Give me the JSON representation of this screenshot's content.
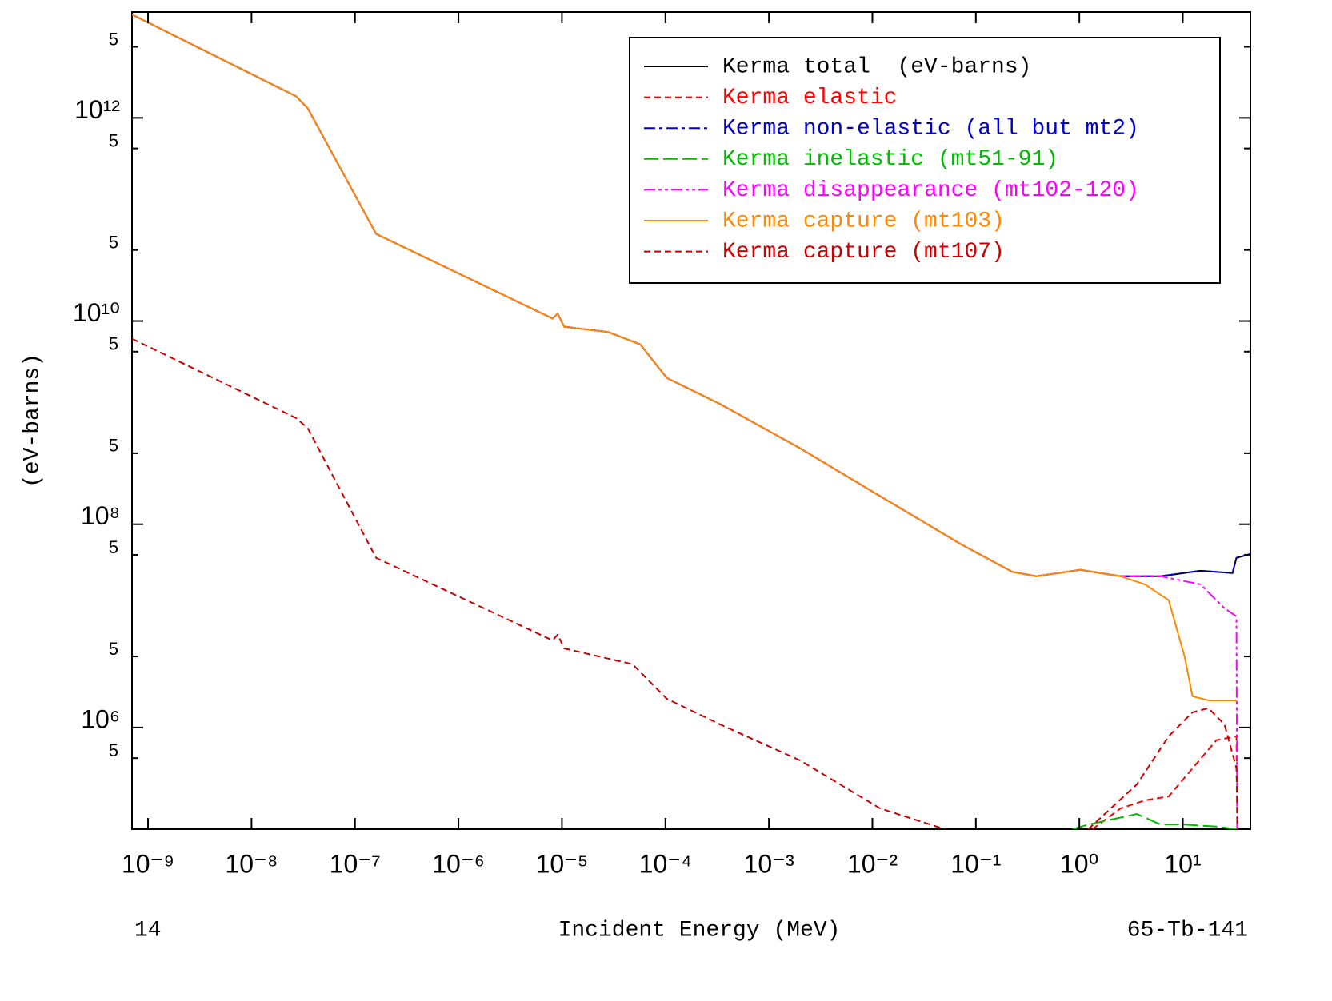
{
  "chart_data": {
    "type": "line",
    "ylabel": "(eV-barns)",
    "xlabel": "Incident Energy (MeV)",
    "left_note": "14",
    "right_note": "65-Tb-141",
    "xscale": "log",
    "yscale": "log",
    "xlim": [
      7e-10,
      45
    ],
    "ylim": [
      100000.0,
      11000000000000.0
    ],
    "xticks": [
      {
        "value": 1e-09,
        "label": "10⁻⁹"
      },
      {
        "value": 1e-08,
        "label": "10⁻⁸"
      },
      {
        "value": 1e-07,
        "label": "10⁻⁷"
      },
      {
        "value": 1e-06,
        "label": "10⁻⁶"
      },
      {
        "value": 1e-05,
        "label": "10⁻⁵"
      },
      {
        "value": 0.0001,
        "label": "10⁻⁴"
      },
      {
        "value": 0.001,
        "label": "10⁻³"
      },
      {
        "value": 0.01,
        "label": "10⁻²"
      },
      {
        "value": 0.1,
        "label": "10⁻¹"
      },
      {
        "value": 1,
        "label": "10⁰"
      },
      {
        "value": 10,
        "label": "10¹"
      }
    ],
    "yticks": [
      {
        "value": 5000000000000.0,
        "label": "5"
      },
      {
        "value": 1000000000000.0,
        "label": "10¹²"
      },
      {
        "value": 500000000000.0,
        "label": "5"
      },
      {
        "value": 50000000000.0,
        "label": "5"
      },
      {
        "value": 10000000000.0,
        "label": "10¹⁰"
      },
      {
        "value": 5000000000.0,
        "label": "5"
      },
      {
        "value": 500000000.0,
        "label": "5"
      },
      {
        "value": 100000000.0,
        "label": "10⁸"
      },
      {
        "value": 50000000.0,
        "label": "5"
      },
      {
        "value": 5000000.0,
        "label": "5"
      },
      {
        "value": 1000000.0,
        "label": "10⁶"
      },
      {
        "value": 500000.0,
        "label": "5"
      }
    ],
    "legend": "upper right",
    "series": [
      {
        "name": "Kerma total  (eV-barns)",
        "color": "#000000",
        "dash": "solid",
        "x": [
          7e-10,
          2.7e-08,
          3.5e-08,
          1.6e-07,
          8.1e-06,
          9.1e-06,
          1.05e-05,
          2.8e-05,
          5.7e-05,
          0.000103,
          0.00034,
          0.002,
          0.0119,
          0.071,
          0.225,
          0.385,
          1.02,
          2.5,
          6.1,
          14.8,
          30.2,
          33,
          45
        ],
        "values": [
          10400000000000.0,
          1630000000000.0,
          1240000000000.0,
          72000000000.0,
          10600000000.0,
          11800000000.0,
          8800000000.0,
          7800000000.0,
          5900000000.0,
          2760000000.0,
          1520000000.0,
          560000000.0,
          189000000.0,
          64000000.0,
          34000000.0,
          30800000.0,
          35600000.0,
          30800000.0,
          30800000.0,
          34900000.0,
          33100000.0,
          46700000.0,
          51000000.0
        ]
      },
      {
        "name": "Kerma elastic",
        "color": "#ff0000",
        "dash": "dashed",
        "x": [
          1.34,
          2.5,
          4.3,
          7.3,
          12.4,
          21.1,
          33,
          33.5
        ],
        "values": [
          100000.0,
          160000.0,
          192000.0,
          210000.0,
          396000.0,
          750000.0,
          820000.0,
          100000.0
        ]
      },
      {
        "name": "Kerma non-elastic (all but mt2)",
        "color": "#0000cc",
        "dash": "dashdot",
        "x": [
          7e-10,
          2.7e-08,
          3.5e-08,
          1.6e-07,
          8.1e-06,
          9.1e-06,
          1.05e-05,
          2.8e-05,
          5.7e-05,
          0.000103,
          0.00034,
          0.002,
          0.0119,
          0.071,
          0.225,
          0.385,
          1.02,
          2.5,
          6.1,
          14.8,
          30.2,
          33,
          45
        ],
        "values": [
          10400000000000.0,
          1630000000000.0,
          1240000000000.0,
          72000000000.0,
          10600000000.0,
          11800000000.0,
          8800000000.0,
          7800000000.0,
          5900000000.0,
          2760000000.0,
          1520000000.0,
          560000000.0,
          189000000.0,
          64000000.0,
          34000000.0,
          30800000.0,
          35600000.0,
          30800000.0,
          30800000.0,
          34900000.0,
          33100000.0,
          46700000.0,
          51000000.0
        ]
      },
      {
        "name": "Kerma inelastic (mt51-91)",
        "color": "#00bb00",
        "dash": "longdash",
        "x": [
          0.86,
          1.22,
          3.6,
          6.1,
          10.4,
          21.1,
          33
        ],
        "values": [
          100000.0,
          111000.0,
          141000.0,
          111000.0,
          111000.0,
          106000.0,
          100000.0
        ]
      },
      {
        "name": "Kerma disappearance (mt102-120)",
        "color": "#ff00ff",
        "dash": "dashdotdot",
        "x": [
          7e-10,
          2.7e-08,
          3.5e-08,
          1.6e-07,
          8.1e-06,
          9.1e-06,
          1.05e-05,
          2.8e-05,
          5.7e-05,
          0.000103,
          0.00034,
          0.002,
          0.0119,
          0.071,
          0.225,
          0.385,
          1.02,
          2.5,
          6.1,
          14.8,
          25.3,
          33,
          33.5
        ],
        "values": [
          10400000000000.0,
          1630000000000.0,
          1240000000000.0,
          72000000000.0,
          10600000000.0,
          11800000000.0,
          8800000000.0,
          7800000000.0,
          5900000000.0,
          2760000000.0,
          1520000000.0,
          560000000.0,
          189000000.0,
          64000000.0,
          34000000.0,
          30800000.0,
          35600000.0,
          30800000.0,
          30800000.0,
          25600000.0,
          14900000.0,
          12400000.0,
          100000.0
        ]
      },
      {
        "name": "Kerma capture (mt103)",
        "color": "#ff8800",
        "dash": "solid",
        "x": [
          7e-10,
          2.7e-08,
          3.5e-08,
          1.6e-07,
          8.1e-06,
          9.1e-06,
          1.05e-05,
          2.8e-05,
          5.7e-05,
          0.000103,
          0.00034,
          0.002,
          0.0119,
          0.071,
          0.225,
          0.385,
          1.02,
          2.5,
          4.3,
          7.3,
          10.4,
          12.4,
          17.7,
          33
        ],
        "values": [
          10400000000000.0,
          1630000000000.0,
          1240000000000.0,
          72000000000.0,
          10600000000.0,
          11800000000.0,
          8800000000.0,
          7800000000.0,
          5900000000.0,
          2760000000.0,
          1520000000.0,
          560000000.0,
          189000000.0,
          64000000.0,
          34000000.0,
          30800000.0,
          35600000.0,
          30800000.0,
          25600000.0,
          17900000.0,
          5000000.0,
          2030000.0,
          1850000.0,
          1850000.0
        ]
      },
      {
        "name": "Kerma capture (mt107)",
        "color": "#cc0000",
        "dash": "dashed",
        "x": [
          7e-10,
          2.7e-08,
          3.5e-08,
          1.6e-07,
          8.1e-06,
          9.1e-06,
          1.05e-05,
          4.8e-05,
          0.000103,
          0.00034,
          0.002,
          0.0119,
          0.05,
          null,
          1.22,
          3.6,
          7.3,
          12.4,
          17.7,
          25.3,
          33,
          34
        ],
        "values": [
          6700000000.0,
          1110000000.0,
          880000000.0,
          46700000.0,
          7200000.0,
          8200000.0,
          6000000.0,
          4200000.0,
          1920000.0,
          1070000.0,
          475000.0,
          160000.0,
          100000.0,
          null,
          100000.0,
          276000.0,
          820000.0,
          1410000.0,
          1550000.0,
          1070000.0,
          396000.0,
          100000.0
        ]
      }
    ]
  }
}
